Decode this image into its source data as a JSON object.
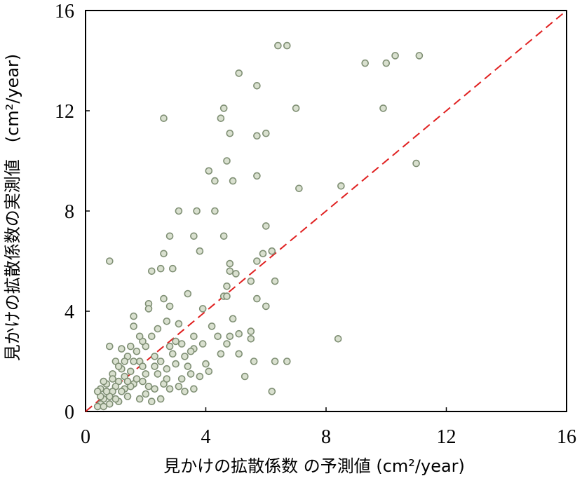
{
  "chart_data": {
    "type": "scatter",
    "title": "",
    "xlabel": "見かけの拡散係数 の予測値 (cm²/year)",
    "ylabel": "見かけの拡散係数の実測値　(cm²/year)",
    "xlim": [
      0,
      16
    ],
    "ylim": [
      0,
      16
    ],
    "xticks": [
      "0",
      "4",
      "8",
      "12",
      "16"
    ],
    "yticks": [
      "0",
      "4",
      "8",
      "12",
      "16"
    ],
    "grid": false,
    "reference_line": {
      "from": [
        0,
        0
      ],
      "to": [
        16,
        16
      ],
      "style": "dashed"
    },
    "colors": {
      "marker_fill": "#d9e0cf",
      "marker_stroke": "#7f8f74",
      "reference_line": "#e02020"
    },
    "points": [
      [
        6.4,
        14.6
      ],
      [
        6.7,
        14.6
      ],
      [
        10.3,
        14.2
      ],
      [
        11.1,
        14.2
      ],
      [
        9.3,
        13.9
      ],
      [
        10.0,
        13.9
      ],
      [
        5.1,
        13.5
      ],
      [
        5.7,
        13.0
      ],
      [
        4.6,
        12.1
      ],
      [
        7.0,
        12.1
      ],
      [
        9.9,
        12.1
      ],
      [
        2.6,
        11.7
      ],
      [
        4.5,
        11.7
      ],
      [
        4.8,
        11.1
      ],
      [
        5.7,
        11.0
      ],
      [
        6.0,
        11.1
      ],
      [
        4.7,
        10.0
      ],
      [
        11.0,
        9.9
      ],
      [
        4.1,
        9.6
      ],
      [
        4.3,
        9.2
      ],
      [
        4.9,
        9.2
      ],
      [
        5.7,
        9.4
      ],
      [
        7.1,
        8.9
      ],
      [
        8.5,
        9.0
      ],
      [
        3.1,
        8.0
      ],
      [
        3.7,
        8.0
      ],
      [
        4.3,
        8.0
      ],
      [
        6.0,
        7.4
      ],
      [
        2.8,
        7.0
      ],
      [
        3.6,
        7.0
      ],
      [
        4.6,
        7.0
      ],
      [
        0.8,
        6.0
      ],
      [
        2.6,
        6.3
      ],
      [
        3.8,
        6.4
      ],
      [
        5.9,
        6.3
      ],
      [
        6.2,
        6.4
      ],
      [
        5.7,
        6.0
      ],
      [
        4.8,
        5.9
      ],
      [
        2.2,
        5.6
      ],
      [
        2.5,
        5.7
      ],
      [
        2.9,
        5.7
      ],
      [
        4.8,
        5.6
      ],
      [
        5.0,
        5.5
      ],
      [
        5.5,
        5.2
      ],
      [
        6.3,
        5.2
      ],
      [
        4.7,
        5.0
      ],
      [
        3.4,
        4.7
      ],
      [
        4.6,
        4.6
      ],
      [
        4.7,
        4.6
      ],
      [
        5.7,
        4.5
      ],
      [
        2.6,
        4.5
      ],
      [
        2.1,
        4.3
      ],
      [
        2.1,
        4.1
      ],
      [
        2.8,
        4.2
      ],
      [
        3.9,
        4.1
      ],
      [
        6.0,
        4.2
      ],
      [
        1.6,
        3.8
      ],
      [
        4.9,
        3.7
      ],
      [
        2.7,
        3.6
      ],
      [
        3.1,
        3.5
      ],
      [
        4.2,
        3.4
      ],
      [
        1.6,
        3.4
      ],
      [
        5.5,
        3.2
      ],
      [
        5.1,
        3.1
      ],
      [
        4.4,
        3.0
      ],
      [
        3.6,
        3.0
      ],
      [
        4.8,
        3.0
      ],
      [
        5.5,
        2.9
      ],
      [
        8.4,
        2.9
      ],
      [
        4.7,
        2.7
      ],
      [
        0.8,
        2.6
      ],
      [
        3.0,
        2.8
      ],
      [
        3.6,
        2.5
      ],
      [
        4.5,
        2.3
      ],
      [
        5.1,
        2.3
      ],
      [
        3.3,
        2.2
      ],
      [
        5.6,
        2.0
      ],
      [
        6.3,
        2.0
      ],
      [
        6.7,
        2.0
      ],
      [
        4.1,
        1.6
      ],
      [
        3.5,
        1.5
      ],
      [
        3.8,
        1.4
      ],
      [
        5.3,
        1.4
      ],
      [
        3.2,
        1.3
      ],
      [
        3.1,
        1.0
      ],
      [
        3.3,
        0.8
      ],
      [
        3.6,
        0.9
      ],
      [
        6.2,
        0.8
      ],
      [
        2.8,
        0.9
      ],
      [
        2.5,
        0.5
      ],
      [
        2.0,
        2.6
      ],
      [
        2.3,
        2.2
      ],
      [
        1.8,
        2.0
      ],
      [
        1.9,
        1.8
      ],
      [
        1.5,
        1.6
      ],
      [
        1.4,
        2.2
      ],
      [
        1.2,
        1.7
      ],
      [
        1.1,
        1.2
      ],
      [
        1.0,
        1.0
      ],
      [
        0.9,
        0.8
      ],
      [
        0.8,
        0.6
      ],
      [
        0.6,
        0.5
      ],
      [
        0.5,
        0.3
      ],
      [
        0.4,
        0.2
      ],
      [
        0.5,
        0.9
      ],
      [
        0.7,
        1.1
      ],
      [
        1.3,
        0.9
      ],
      [
        1.6,
        1.1
      ],
      [
        2.1,
        1.0
      ],
      [
        2.4,
        1.5
      ],
      [
        2.7,
        1.7
      ],
      [
        2.9,
        2.3
      ],
      [
        3.0,
        1.9
      ],
      [
        2.2,
        3.0
      ],
      [
        1.9,
        2.8
      ],
      [
        1.5,
        2.6
      ],
      [
        1.2,
        2.5
      ],
      [
        1.0,
        2.0
      ],
      [
        1.7,
        1.3
      ],
      [
        2.0,
        0.7
      ],
      [
        1.4,
        0.6
      ],
      [
        1.1,
        0.4
      ],
      [
        0.8,
        0.3
      ],
      [
        1.8,
        0.5
      ],
      [
        2.2,
        0.4
      ],
      [
        2.6,
        1.1
      ],
      [
        2.3,
        1.8
      ],
      [
        1.6,
        2.0
      ],
      [
        1.3,
        1.4
      ],
      [
        0.9,
        1.5
      ],
      [
        0.6,
        1.2
      ],
      [
        0.7,
        0.8
      ],
      [
        1.2,
        0.8
      ],
      [
        1.5,
        1.0
      ],
      [
        2.0,
        1.5
      ],
      [
        2.5,
        2.0
      ],
      [
        2.8,
        2.6
      ],
      [
        3.2,
        2.7
      ],
      [
        2.4,
        3.3
      ],
      [
        1.8,
        3.0
      ],
      [
        1.1,
        1.8
      ],
      [
        0.5,
        0.6
      ],
      [
        0.4,
        0.8
      ],
      [
        0.6,
        0.2
      ],
      [
        1.0,
        0.5
      ],
      [
        1.4,
        1.2
      ],
      [
        1.9,
        1.2
      ],
      [
        2.3,
        0.9
      ],
      [
        2.7,
        1.3
      ],
      [
        3.4,
        1.8
      ],
      [
        3.5,
        2.4
      ],
      [
        3.9,
        2.7
      ],
      [
        4.0,
        1.9
      ],
      [
        1.7,
        2.4
      ],
      [
        1.3,
        2.0
      ],
      [
        0.9,
        1.3
      ]
    ]
  }
}
